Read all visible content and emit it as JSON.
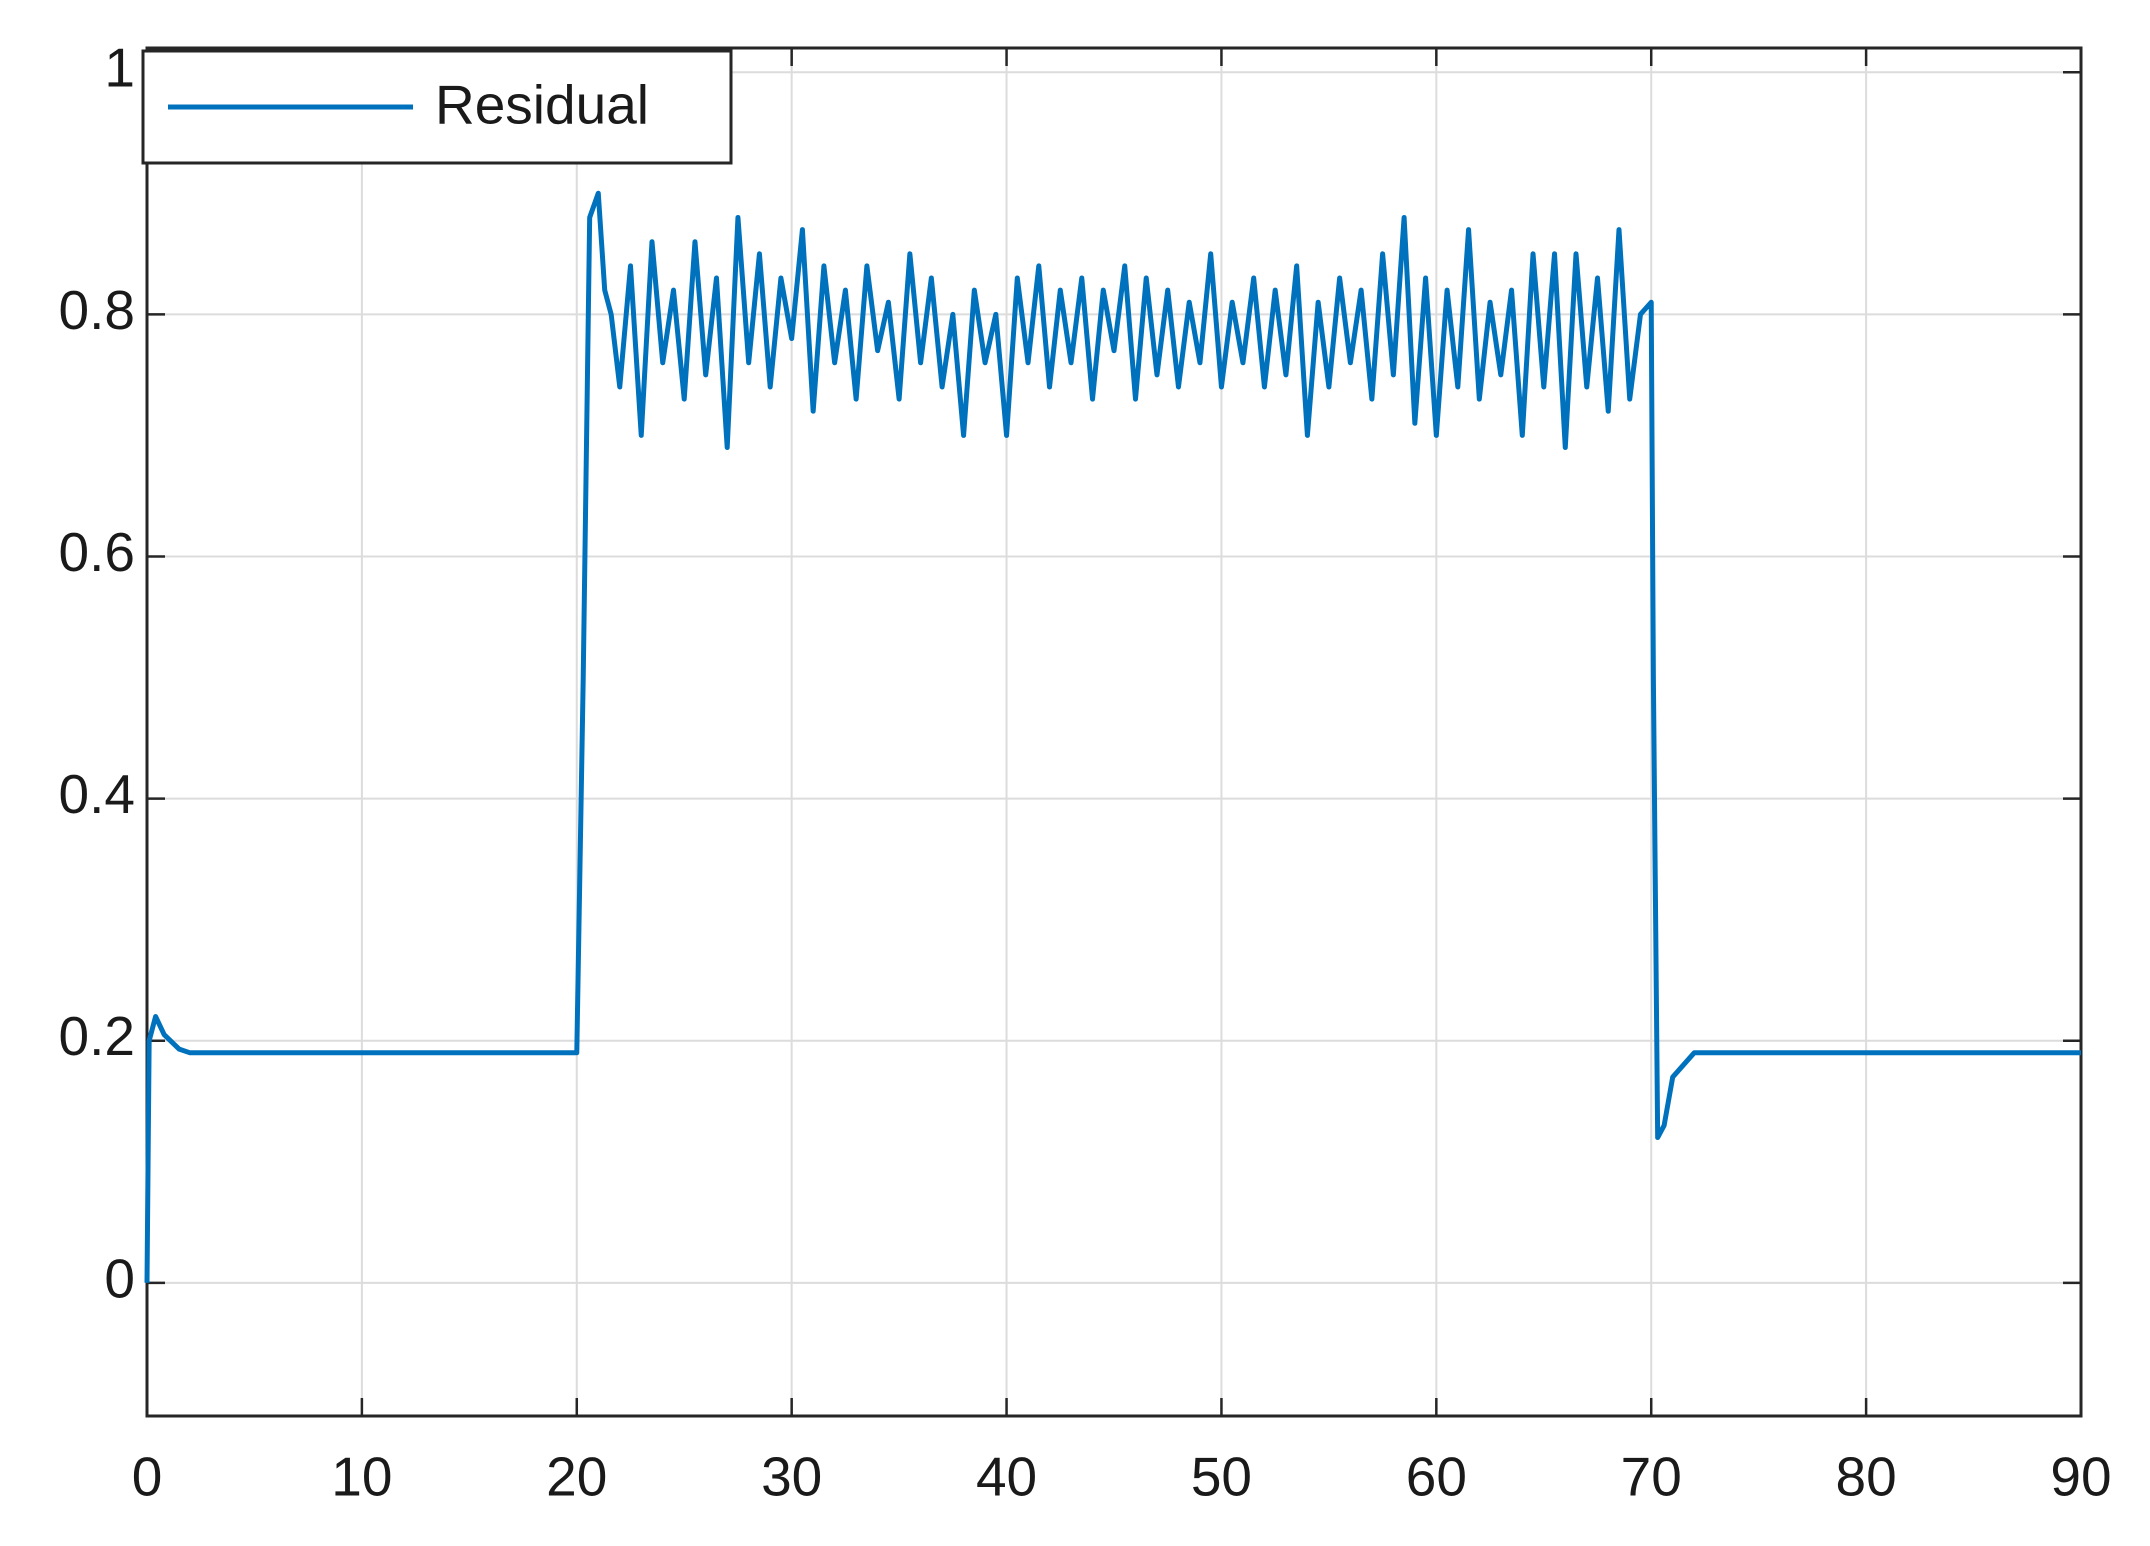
{
  "chart_data": {
    "type": "line",
    "x": [
      0,
      0.1,
      0.4,
      0.8,
      1.5,
      2,
      19.9,
      20,
      20.3,
      20.6,
      21,
      21.3,
      21.6,
      22,
      22.5,
      23,
      23.5,
      24,
      24.5,
      25,
      25.5,
      26,
      26.5,
      27,
      27.5,
      28,
      28.5,
      29,
      29.5,
      30,
      30.5,
      31,
      31.5,
      32,
      32.5,
      33,
      33.5,
      34,
      34.5,
      35,
      35.5,
      36,
      36.5,
      37,
      37.5,
      38,
      38.5,
      39,
      39.5,
      40,
      40.5,
      41,
      41.5,
      42,
      42.5,
      43,
      43.5,
      44,
      44.5,
      45,
      45.5,
      46,
      46.5,
      47,
      47.5,
      48,
      48.5,
      49,
      49.5,
      50,
      50.5,
      51,
      51.5,
      52,
      52.5,
      53,
      53.5,
      54,
      54.5,
      55,
      55.5,
      56,
      56.5,
      57,
      57.5,
      58,
      58.5,
      59,
      59.5,
      60,
      60.5,
      61,
      61.5,
      62,
      62.5,
      63,
      63.5,
      64,
      64.5,
      65,
      65.5,
      66,
      66.5,
      67,
      67.5,
      68,
      68.5,
      69,
      69.5,
      70,
      70.1,
      70.3,
      70.6,
      71,
      72,
      90
    ],
    "series": [
      {
        "name": "Residual",
        "color": "#0072bd",
        "values": [
          0,
          0.2,
          0.22,
          0.205,
          0.193,
          0.19,
          0.19,
          0.19,
          0.5,
          0.88,
          0.9,
          0.82,
          0.8,
          0.74,
          0.84,
          0.7,
          0.86,
          0.76,
          0.82,
          0.73,
          0.86,
          0.75,
          0.83,
          0.69,
          0.88,
          0.76,
          0.85,
          0.74,
          0.83,
          0.78,
          0.87,
          0.72,
          0.84,
          0.76,
          0.82,
          0.73,
          0.84,
          0.77,
          0.81,
          0.73,
          0.85,
          0.76,
          0.83,
          0.74,
          0.8,
          0.7,
          0.82,
          0.76,
          0.8,
          0.7,
          0.83,
          0.76,
          0.84,
          0.74,
          0.82,
          0.76,
          0.83,
          0.73,
          0.82,
          0.77,
          0.84,
          0.73,
          0.83,
          0.75,
          0.82,
          0.74,
          0.81,
          0.76,
          0.85,
          0.74,
          0.81,
          0.76,
          0.83,
          0.74,
          0.82,
          0.75,
          0.84,
          0.7,
          0.81,
          0.74,
          0.83,
          0.76,
          0.82,
          0.73,
          0.85,
          0.75,
          0.88,
          0.71,
          0.83,
          0.7,
          0.82,
          0.74,
          0.87,
          0.73,
          0.81,
          0.75,
          0.82,
          0.7,
          0.85,
          0.74,
          0.85,
          0.69,
          0.85,
          0.74,
          0.83,
          0.72,
          0.87,
          0.73,
          0.8,
          0.81,
          0.5,
          0.12,
          0.13,
          0.17,
          0.19,
          0.19
        ]
      }
    ],
    "xlim": [
      0,
      90
    ],
    "xticks": [
      0,
      10,
      20,
      30,
      40,
      50,
      60,
      70,
      80,
      90
    ],
    "ylim": [
      -0.11,
      1.02
    ],
    "yticks": [
      0,
      0.2,
      0.4,
      0.6,
      0.8,
      1
    ],
    "grid": true,
    "legend": "upper-left"
  }
}
